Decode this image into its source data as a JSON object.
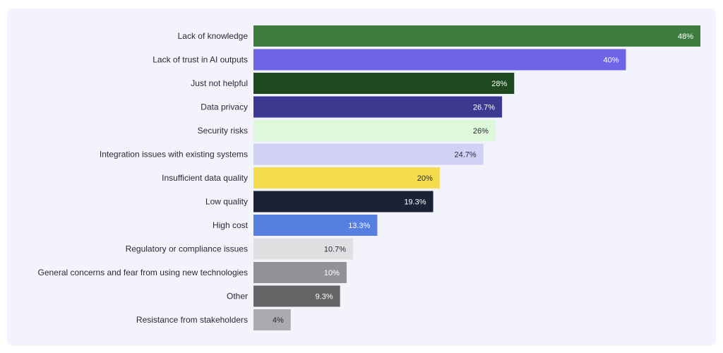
{
  "chart_data": {
    "type": "bar",
    "orientation": "horizontal",
    "title": "",
    "xlabel": "",
    "ylabel": "",
    "xlim": [
      0,
      48
    ],
    "grid": false,
    "categories": [
      "Lack of knowledge",
      "Lack of trust in AI outputs",
      "Just not helpful",
      "Data privacy",
      "Security risks",
      "Integration issues with existing systems",
      "Insufficient data quality",
      "Low quality",
      "High cost",
      "Regulatory or compliance issues",
      "General concerns and fear from using new technologies",
      "Other",
      "Resistance from stakeholders"
    ],
    "values": [
      48,
      40,
      28,
      26.7,
      26,
      24.7,
      20,
      19.3,
      13.3,
      10.7,
      10,
      9.3,
      4
    ],
    "value_labels": [
      "48%",
      "40%",
      "28%",
      "26.7%",
      "26%",
      "24.7%",
      "20%",
      "19.3%",
      "13.3%",
      "10.7%",
      "10%",
      "9.3%",
      "4%"
    ],
    "bar_colors": [
      "#3f7c40",
      "#6d64e8",
      "#1f4a20",
      "#3e3990",
      "#ddf9d9",
      "#d2d0f6",
      "#f5dc4e",
      "#1b2235",
      "#557fe0",
      "#e0e0e2",
      "#929296",
      "#646466",
      "#ababaf"
    ],
    "label_colors": [
      "#ffffff",
      "#ffffff",
      "#ffffff",
      "#ffffff",
      "#2a2a35",
      "#2a2a35",
      "#2a2a35",
      "#ffffff",
      "#ffffff",
      "#2a2a35",
      "#ffffff",
      "#ffffff",
      "#2a2a35"
    ]
  }
}
